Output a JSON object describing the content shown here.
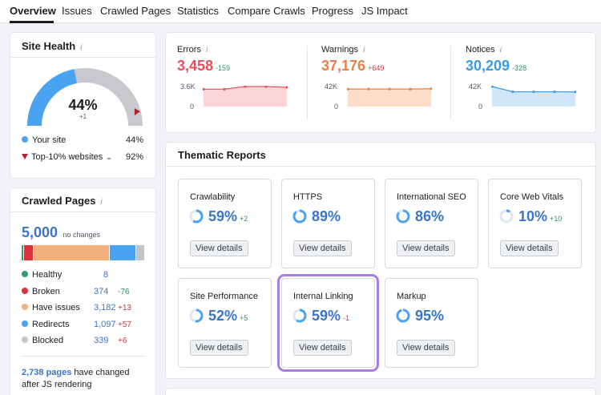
{
  "tabs": [
    "Overview",
    "Issues",
    "Crawled Pages",
    "Statistics",
    "Compare Crawls",
    "Progress",
    "JS Impact"
  ],
  "site_health": {
    "title": "Site Health",
    "score": "44%",
    "score_delta": "+1",
    "score_fraction": 0.44,
    "top10_fraction": 0.92,
    "legend": [
      {
        "label": "Your site",
        "value": "44%",
        "color": "#4aa3f0"
      },
      {
        "label": "Top-10% websites",
        "value": "92%",
        "color": "#b5202e"
      }
    ]
  },
  "crawled_pages": {
    "title": "Crawled Pages",
    "total": "5,000",
    "total_note": "no changes",
    "segments": [
      {
        "name": "Healthy",
        "fraction": 0.0016,
        "color": "#2f9e6e"
      },
      {
        "name": "Broken",
        "fraction": 0.075,
        "color": "#d9323d"
      },
      {
        "name": "Have issues",
        "fraction": 0.636,
        "color": "#f2b07c"
      },
      {
        "name": "Redirects",
        "fraction": 0.219,
        "color": "#4aa3f0"
      },
      {
        "name": "Blocked",
        "fraction": 0.068,
        "color": "#c2c5ca"
      }
    ],
    "rows": [
      {
        "label": "Healthy",
        "value": "8",
        "delta": "",
        "delta_class": "",
        "color": "#2f9e6e"
      },
      {
        "label": "Broken",
        "value": "374",
        "delta": "-76",
        "delta_class": "neg",
        "color": "#d9323d"
      },
      {
        "label": "Have issues",
        "value": "3,182",
        "delta": "+13",
        "delta_class": "pos",
        "color": "#f2b07c"
      },
      {
        "label": "Redirects",
        "value": "1,097",
        "delta": "+57",
        "delta_class": "pos",
        "color": "#4aa3f0"
      },
      {
        "label": "Blocked",
        "value": "339",
        "delta": "+6",
        "delta_class": "pos",
        "color": "#c2c5ca"
      }
    ],
    "js_pages_link": "2,738 pages",
    "js_text_1": " have changed",
    "js_text_2": "after JS rendering"
  },
  "metrics": [
    {
      "label": "Errors",
      "value": "3,458",
      "delta": "-159",
      "delta_class": "neg",
      "color": "#e5505a",
      "fill": "#fbd5d6",
      "axis_top": "3.6K",
      "axis_bottom": "0",
      "series": [
        3100,
        3100,
        3617,
        3617,
        3458
      ]
    },
    {
      "label": "Warnings",
      "value": "37,176",
      "delta": "+649",
      "delta_class": "pos",
      "color": "#e8804a",
      "fill": "#fddcc8",
      "axis_top": "42K",
      "axis_bottom": "0",
      "series": [
        36500,
        36500,
        36527,
        36527,
        37176
      ]
    },
    {
      "label": "Notices",
      "value": "30,209",
      "delta": "-328",
      "delta_class": "neg",
      "color": "#3b9be8",
      "fill": "#cfe6fb",
      "axis_top": "42K",
      "axis_bottom": "0",
      "series": [
        42000,
        30537,
        30537,
        30537,
        30209
      ]
    }
  ],
  "thematic": {
    "title": "Thematic Reports",
    "button_label": "View details",
    "reports": [
      {
        "name": "Crawlability",
        "pct": "59%",
        "fraction": 0.59,
        "delta": "+2",
        "delta_class": "neg"
      },
      {
        "name": "HTTPS",
        "pct": "89%",
        "fraction": 0.89,
        "delta": "",
        "delta_class": ""
      },
      {
        "name": "International SEO",
        "pct": "86%",
        "fraction": 0.86,
        "delta": "",
        "delta_class": ""
      },
      {
        "name": "Core Web Vitals",
        "pct": "10%",
        "fraction": 0.1,
        "delta": "+10",
        "delta_class": "neg"
      },
      {
        "name": "Site Performance",
        "pct": "52%",
        "fraction": 0.52,
        "delta": "+5",
        "delta_class": "neg"
      },
      {
        "name": "Internal Linking",
        "pct": "59%",
        "fraction": 0.59,
        "delta": "-1",
        "delta_class": "pos"
      },
      {
        "name": "Markup",
        "pct": "95%",
        "fraction": 0.95,
        "delta": "",
        "delta_class": ""
      }
    ]
  }
}
